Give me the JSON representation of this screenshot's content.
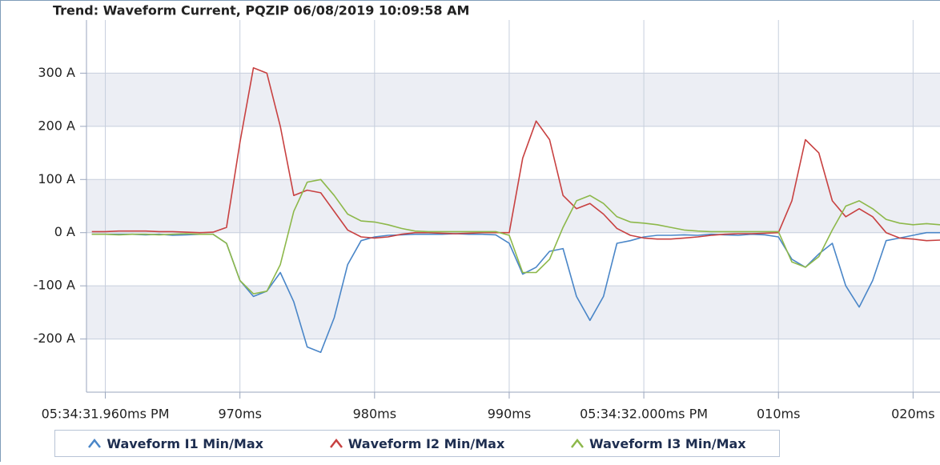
{
  "chart_data": {
    "type": "line",
    "title": "Trend: Waveform Current, PQZIP 06/08/2019 10:09:58 AM",
    "x": [
      959,
      960,
      961,
      962,
      963,
      964,
      965,
      966,
      967,
      968,
      969,
      970,
      971,
      972,
      973,
      974,
      975,
      976,
      977,
      978,
      979,
      980,
      981,
      982,
      983,
      984,
      985,
      986,
      987,
      988,
      989,
      990,
      991,
      992,
      993,
      994,
      995,
      996,
      997,
      998,
      999,
      1000,
      1001,
      1002,
      1003,
      1004,
      1005,
      1006,
      1007,
      1008,
      1009,
      1010,
      1011,
      1012,
      1013,
      1014,
      1015,
      1016,
      1017,
      1018,
      1019,
      1020,
      1021,
      1022
    ],
    "series": [
      {
        "name": "Waveform I1 Min/Max",
        "color": "#4a86c8",
        "values": [
          -3,
          -3,
          -3,
          -3,
          -4,
          -3,
          -5,
          -4,
          -3,
          -3,
          -20,
          -90,
          -120,
          -110,
          -75,
          -130,
          -215,
          -225,
          -160,
          -60,
          -15,
          -8,
          -5,
          -4,
          -3,
          -3,
          -3,
          -2,
          -3,
          -3,
          -4,
          -20,
          -78,
          -65,
          -35,
          -30,
          -120,
          -165,
          -120,
          -20,
          -15,
          -8,
          -5,
          -5,
          -4,
          -5,
          -3,
          -4,
          -5,
          -3,
          -4,
          -8,
          -50,
          -65,
          -40,
          -20,
          -100,
          -140,
          -90,
          -15,
          -10,
          -5,
          0,
          0
        ]
      },
      {
        "name": "Waveform I2 Min/Max",
        "color": "#c84141",
        "values": [
          2,
          2,
          3,
          3,
          3,
          2,
          2,
          1,
          0,
          1,
          10,
          170,
          310,
          300,
          200,
          70,
          80,
          75,
          40,
          5,
          -8,
          -10,
          -8,
          -3,
          0,
          0,
          -1,
          -2,
          -1,
          0,
          0,
          0,
          140,
          210,
          175,
          70,
          45,
          55,
          35,
          8,
          -5,
          -10,
          -12,
          -12,
          -10,
          -8,
          -5,
          -3,
          -2,
          -2,
          -1,
          0,
          60,
          175,
          150,
          60,
          30,
          45,
          30,
          0,
          -10,
          -12,
          -15,
          -14
        ]
      },
      {
        "name": "Waveform I3 Min/Max",
        "color": "#8db84a",
        "values": [
          -3,
          -3,
          -4,
          -3,
          -3,
          -4,
          -3,
          -2,
          -3,
          -3,
          -20,
          -90,
          -115,
          -110,
          -60,
          40,
          95,
          100,
          70,
          35,
          22,
          20,
          15,
          8,
          3,
          2,
          2,
          2,
          2,
          2,
          2,
          -5,
          -75,
          -75,
          -50,
          10,
          60,
          70,
          55,
          30,
          20,
          18,
          15,
          10,
          5,
          3,
          2,
          2,
          2,
          2,
          2,
          2,
          -55,
          -65,
          -45,
          5,
          50,
          60,
          45,
          25,
          18,
          15,
          17,
          15
        ]
      }
    ],
    "xlim": [
      958.6,
      1022
    ],
    "xticks": [
      {
        "value": 960,
        "label": "05:34:31.960ms PM"
      },
      {
        "value": 970,
        "label": "970ms"
      },
      {
        "value": 980,
        "label": "980ms"
      },
      {
        "value": 990,
        "label": "990ms"
      },
      {
        "value": 1000,
        "label": "05:34:32.000ms PM"
      },
      {
        "value": 1010,
        "label": "010ms"
      },
      {
        "value": 1020,
        "label": "020ms"
      }
    ],
    "ylim": [
      -300,
      400
    ],
    "yticks": [
      {
        "value": -200,
        "label": "-200 A"
      },
      {
        "value": -100,
        "label": "-100 A"
      },
      {
        "value": 0,
        "label": "0 A"
      },
      {
        "value": 100,
        "label": "100 A"
      },
      {
        "value": 200,
        "label": "200 A"
      },
      {
        "value": 300,
        "label": "300 A"
      }
    ],
    "grid": true
  }
}
